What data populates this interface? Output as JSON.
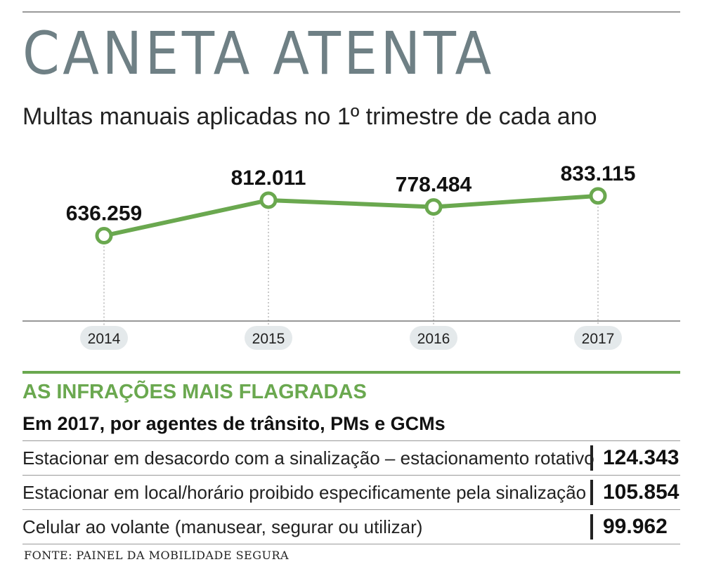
{
  "header": {
    "title": "CANETA ATENTA",
    "subtitle": "Multas manuais aplicadas no 1º trimestre de cada ano"
  },
  "chart_data": {
    "type": "line",
    "title": "CANETA ATENTA",
    "subtitle": "Multas manuais aplicadas no 1º trimestre de cada ano",
    "x": [
      "2014",
      "2015",
      "2016",
      "2017"
    ],
    "values": [
      636259,
      812011,
      778484,
      833115
    ],
    "value_labels": [
      "636.259",
      "812.011",
      "778.484",
      "833.115"
    ],
    "xlabel": "",
    "ylabel": "",
    "grid": false,
    "legend": "none",
    "line_color": "#6aa84f"
  },
  "infractions": {
    "title": "AS INFRAÇÕES MAIS FLAGRADAS",
    "subtitle": "Em 2017, por agentes de trânsito, PMs e GCMs",
    "rows": [
      {
        "label": "Estacionar em desacordo com a sinalização – estacionamento rotativo",
        "value": "124.343"
      },
      {
        "label": "Estacionar em local/horário proibido especificamente pela sinalização",
        "value": "105.854"
      },
      {
        "label": "Celular ao volante (manusear, segurar ou utilizar)",
        "value": "99.962"
      }
    ]
  },
  "source": "FONTE: PAINEL DA MOBILIDADE SEGURA",
  "colors": {
    "accent": "#6aa84f",
    "title": "#6f8085",
    "pill": "#e4e9eb"
  }
}
